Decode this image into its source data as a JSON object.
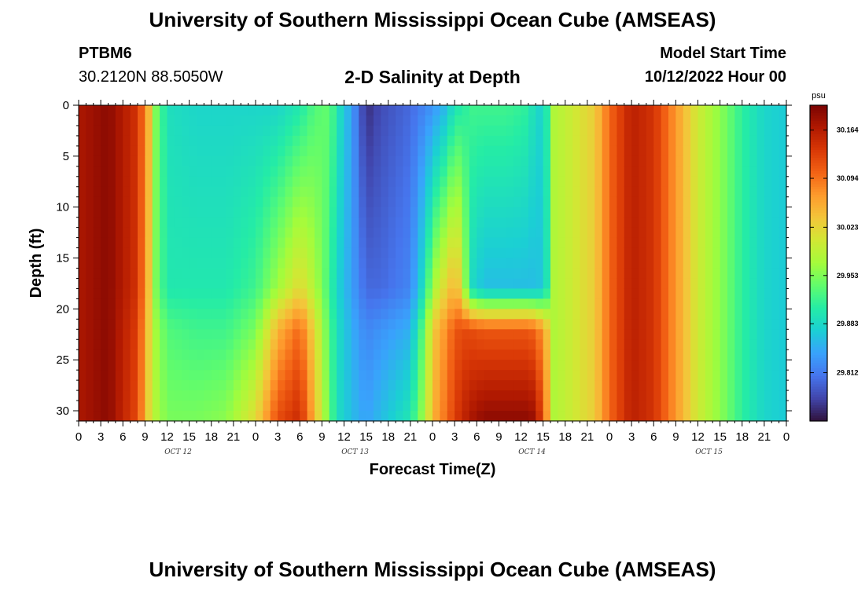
{
  "header": {
    "title": "University of Southern Mississippi Ocean Cube (AMSEAS)",
    "station_id": "PTBM6",
    "station_coords": "30.2120N  88.5050W",
    "plot_title": "2-D Salinity at Depth",
    "model_start_label": "Model Start Time",
    "model_start_value": "10/12/2022 Hour 00"
  },
  "footer": {
    "title": "University of Southern Mississippi Ocean Cube (AMSEAS)"
  },
  "chart_data": {
    "type": "heatmap",
    "title": "2-D Salinity at Depth",
    "xlabel": "Forecast Time(Z)",
    "ylabel": "Depth (ft)",
    "xlim_hours": [
      0,
      96
    ],
    "ylim": [
      0,
      31
    ],
    "x_tick_labels": [
      "0",
      "3",
      "6",
      "9",
      "12",
      "15",
      "18",
      "21",
      "0",
      "3",
      "6",
      "9",
      "12",
      "15",
      "18",
      "21",
      "0",
      "3",
      "6",
      "9",
      "12",
      "15",
      "18",
      "21",
      "0",
      "3",
      "6",
      "9",
      "12",
      "15",
      "18",
      "21",
      "0"
    ],
    "day_labels": [
      "OCT 12",
      "OCT 13",
      "OCT 14",
      "OCT 15"
    ],
    "y_ticks": [
      0,
      5,
      10,
      15,
      20,
      25,
      30
    ],
    "colorbar": {
      "unit": "psu",
      "tick_values": [
        "30.164",
        "30.094",
        "30.023",
        "29.953",
        "29.883",
        "29.812"
      ],
      "range": [
        29.742,
        30.2
      ],
      "colormap": [
        "#30123b",
        "#4145ab",
        "#4675ed",
        "#39a2fc",
        "#1bcfd4",
        "#24eca6",
        "#61fc6c",
        "#a4fc3b",
        "#d1e834",
        "#f3c63a",
        "#fe9b2d",
        "#f36315",
        "#d93806",
        "#b11901",
        "#7a0403"
      ]
    },
    "depths_ft": [
      0,
      18,
      22,
      31
    ],
    "profiles": {
      "columns": "hour, salinity at depth 0 / 18 / 22 / 31 ft",
      "values": [
        [
          0,
          30.17,
          30.17,
          30.17,
          30.17
        ],
        [
          4,
          30.19,
          30.19,
          30.19,
          30.19
        ],
        [
          8,
          30.14,
          30.14,
          30.13,
          30.12
        ],
        [
          9.5,
          30.05,
          30.04,
          30.03,
          30.02
        ],
        [
          10.5,
          29.95,
          29.95,
          29.97,
          29.98
        ],
        [
          12,
          29.89,
          29.9,
          29.93,
          29.95
        ],
        [
          16,
          29.88,
          29.9,
          29.92,
          29.95
        ],
        [
          20,
          29.88,
          29.9,
          29.92,
          29.96
        ],
        [
          24,
          29.88,
          29.92,
          29.95,
          30.02
        ],
        [
          27,
          29.88,
          29.97,
          30.05,
          30.12
        ],
        [
          30,
          29.9,
          30.02,
          30.1,
          30.15
        ],
        [
          32,
          29.93,
          29.98,
          30.02,
          30.05
        ],
        [
          34,
          29.94,
          29.92,
          29.93,
          29.94
        ],
        [
          35,
          29.9,
          29.88,
          29.89,
          29.89
        ],
        [
          37,
          29.84,
          29.84,
          29.85,
          29.86
        ],
        [
          39,
          29.76,
          29.8,
          29.82,
          29.84
        ],
        [
          41,
          29.78,
          29.8,
          29.83,
          29.86
        ],
        [
          45,
          29.8,
          29.82,
          29.85,
          29.9
        ],
        [
          47,
          29.82,
          29.9,
          29.95,
          29.98
        ],
        [
          48,
          29.83,
          29.97,
          30.03,
          30.05
        ],
        [
          50,
          29.86,
          30.03,
          30.08,
          30.1
        ],
        [
          51,
          29.9,
          30.05,
          30.11,
          30.13
        ],
        [
          52,
          29.9,
          30.02,
          30.12,
          30.15
        ],
        [
          53,
          29.92,
          29.89,
          30.12,
          30.17
        ],
        [
          55,
          29.92,
          29.86,
          30.11,
          30.19
        ],
        [
          58,
          29.92,
          29.86,
          30.11,
          30.19
        ],
        [
          61,
          29.91,
          29.86,
          30.11,
          30.19
        ],
        [
          62,
          29.88,
          29.86,
          30.1,
          30.18
        ],
        [
          63.2,
          29.88,
          29.87,
          30.06,
          30.1
        ],
        [
          64.5,
          29.98,
          29.98,
          29.98,
          29.98
        ],
        [
          67,
          30.0,
          30.0,
          30.0,
          30.0
        ],
        [
          70,
          30.03,
          30.03,
          30.03,
          30.03
        ],
        [
          72,
          30.1,
          30.1,
          30.1,
          30.1
        ],
        [
          75,
          30.16,
          30.16,
          30.16,
          30.16
        ],
        [
          78,
          30.14,
          30.14,
          30.14,
          30.14
        ],
        [
          81,
          30.07,
          30.07,
          30.07,
          30.07
        ],
        [
          84,
          30.0,
          30.0,
          30.0,
          30.0
        ],
        [
          87,
          29.96,
          29.96,
          29.96,
          29.96
        ],
        [
          90,
          29.91,
          29.91,
          29.91,
          29.91
        ],
        [
          93,
          29.88,
          29.88,
          29.88,
          29.88
        ],
        [
          96,
          29.87,
          29.87,
          29.87,
          29.87
        ]
      ]
    }
  }
}
